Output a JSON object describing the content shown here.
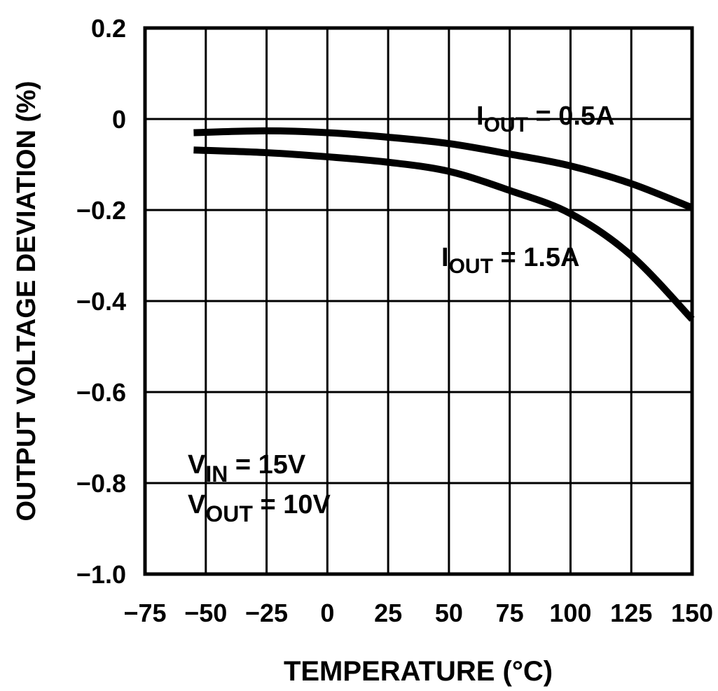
{
  "chart_data": {
    "type": "line",
    "title": "",
    "xlabel": "TEMPERATURE (°C)",
    "ylabel": "OUTPUT VOLTAGE DEVIATION (%)",
    "xlim": [
      -75,
      150
    ],
    "ylim": [
      -1.0,
      0.2
    ],
    "xticks": [
      -75,
      -50,
      -25,
      0,
      25,
      50,
      75,
      100,
      125,
      150
    ],
    "xtick_labels": [
      "−75",
      "−50",
      "−25",
      "0",
      "25",
      "50",
      "75",
      "100",
      "125",
      "150"
    ],
    "yticks": [
      0.2,
      0,
      -0.2,
      -0.4,
      -0.6,
      -0.8,
      -1.0
    ],
    "ytick_labels": [
      "0.2",
      "0",
      "−0.2",
      "−0.4",
      "−0.6",
      "−0.8",
      "−1.0"
    ],
    "grid": true,
    "line_color": "#000000",
    "series": [
      {
        "name": "IOUT = 0.5A",
        "label": {
          "main": "I",
          "sub": "OUT",
          "rest": " =  0.5A"
        },
        "x": [
          -55,
          -25,
          0,
          25,
          50,
          75,
          100,
          125,
          150
        ],
        "y": [
          -0.03,
          -0.026,
          -0.03,
          -0.04,
          -0.054,
          -0.077,
          -0.103,
          -0.142,
          -0.195
        ]
      },
      {
        "name": "IOUT = 1.5A",
        "label": {
          "main": "I",
          "sub": "OUT",
          "rest": " =  1.5A"
        },
        "x": [
          -55,
          -25,
          0,
          25,
          50,
          75,
          100,
          125,
          150
        ],
        "y": [
          -0.068,
          -0.074,
          -0.083,
          -0.095,
          -0.115,
          -0.157,
          -0.208,
          -0.3,
          -0.44
        ]
      }
    ],
    "annotations": [
      {
        "main": "V",
        "sub": "IN",
        "rest": " = 15V"
      },
      {
        "main": "V",
        "sub": "OUT",
        "rest": " = 10V"
      }
    ]
  }
}
